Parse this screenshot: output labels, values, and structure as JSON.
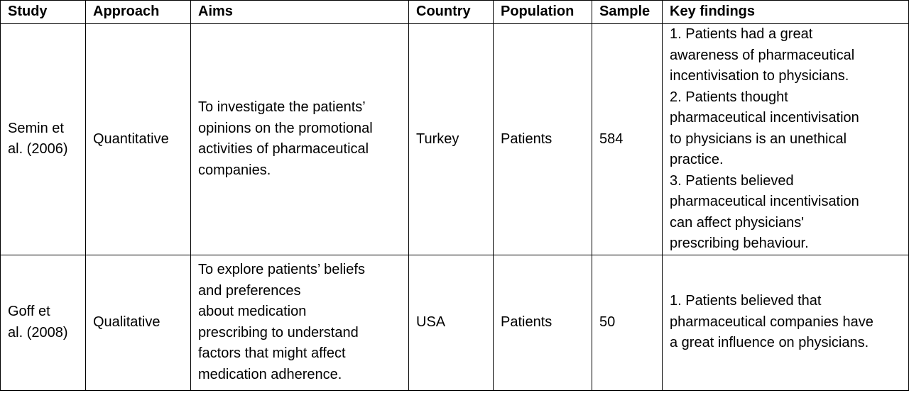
{
  "table": {
    "headers": {
      "study": "Study",
      "approach": "Approach",
      "aims": "Aims",
      "country": "Country",
      "population": "Population",
      "sample": "Sample",
      "findings": "Key findings"
    },
    "rows": [
      {
        "study_lines": [
          "Semin et",
          "al. (2006)"
        ],
        "approach": "Quantitative",
        "aims_lines": [
          "To investigate the patients’",
          "opinions on the promotional",
          "activities of pharmaceutical",
          "companies."
        ],
        "country": "Turkey",
        "population": "Patients",
        "sample": "584",
        "findings_lines": [
          "1. Patients had a great",
          "awareness of pharmaceutical",
          "incentivisation to physicians.",
          "2. Patients thought",
          "pharmaceutical incentivisation",
          "to physicians is an unethical",
          "practice.",
          "3. Patients believed",
          "pharmaceutical incentivisation",
          "can affect physicians'",
          "prescribing behaviour."
        ]
      },
      {
        "study_lines": [
          "Goff et",
          "al. (2008)"
        ],
        "approach": "Qualitative",
        "aims_lines": [
          "To explore patients’ beliefs",
          "and preferences",
          "about medication",
          "prescribing to understand",
          "factors that might affect",
          "medication adherence."
        ],
        "country": "USA",
        "population": "Patients",
        "sample": "50",
        "findings_lines": [
          "1. Patients believed that",
          "pharmaceutical companies have",
          "a great influence on physicians."
        ]
      }
    ]
  }
}
